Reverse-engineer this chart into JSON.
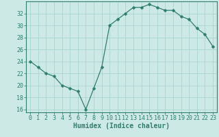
{
  "x": [
    0,
    1,
    2,
    3,
    4,
    5,
    6,
    7,
    8,
    9,
    10,
    11,
    12,
    13,
    14,
    15,
    16,
    17,
    18,
    19,
    20,
    21,
    22,
    23
  ],
  "y": [
    24,
    23,
    22,
    21.5,
    20,
    19.5,
    19,
    16,
    19.5,
    23,
    30,
    31,
    32,
    33,
    33,
    33.5,
    33,
    32.5,
    32.5,
    31.5,
    31,
    29.5,
    28.5,
    26.5
  ],
  "line_color": "#2e7d6e",
  "marker": "D",
  "marker_size": 2.5,
  "bg_color": "#cce9e5",
  "grid_color": "#aad4cf",
  "xlabel": "Humidex (Indice chaleur)",
  "yticks": [
    16,
    18,
    20,
    22,
    24,
    26,
    28,
    30,
    32
  ],
  "xticks": [
    0,
    1,
    2,
    3,
    4,
    5,
    6,
    7,
    8,
    9,
    10,
    11,
    12,
    13,
    14,
    15,
    16,
    17,
    18,
    19,
    20,
    21,
    22,
    23
  ],
  "ylim": [
    15.5,
    34.0
  ],
  "xlim": [
    -0.5,
    23.5
  ],
  "axis_color": "#2e7d6e",
  "tick_color": "#2e7d6e",
  "label_fontsize": 7,
  "tick_fontsize": 6
}
